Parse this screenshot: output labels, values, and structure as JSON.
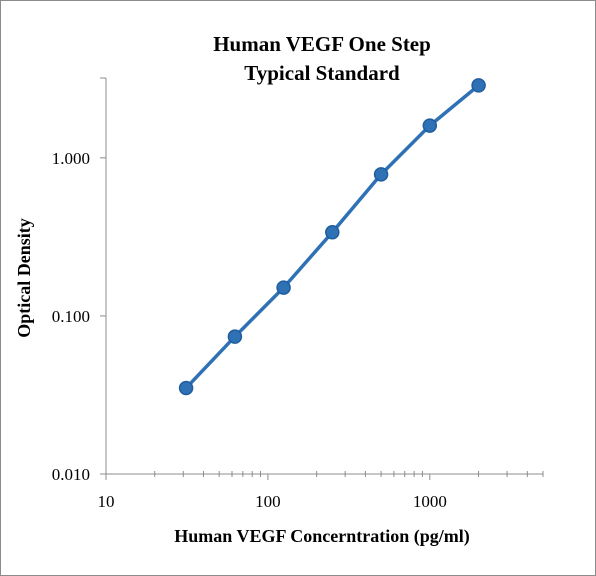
{
  "chart_data": {
    "type": "scatter",
    "title_lines": [
      "Human VEGF One Step",
      "Typical Standard"
    ],
    "xlabel": "Human VEGF Concerntration (pg/ml)",
    "ylabel": "Optical Density",
    "x_scale": "log",
    "y_scale": "log",
    "xlim": [
      10,
      5000
    ],
    "ylim": [
      0.01,
      3.2
    ],
    "x_ticks": [
      {
        "value": 10,
        "label": "10"
      },
      {
        "value": 100,
        "label": "100"
      },
      {
        "value": 1000,
        "label": "1000"
      }
    ],
    "y_ticks": [
      {
        "value": 0.01,
        "label": "0.010"
      },
      {
        "value": 0.1,
        "label": "0.100"
      },
      {
        "value": 1,
        "label": "1.000"
      }
    ],
    "grid": false,
    "legend": "none",
    "series": [
      {
        "x": [
          31.25,
          62.5,
          125,
          250,
          500,
          1000,
          2000
        ],
        "y": [
          0.035,
          0.074,
          0.151,
          0.338,
          0.786,
          1.6,
          2.875
        ],
        "color": "#2f71b5",
        "line": true,
        "marker": "circle"
      }
    ]
  }
}
